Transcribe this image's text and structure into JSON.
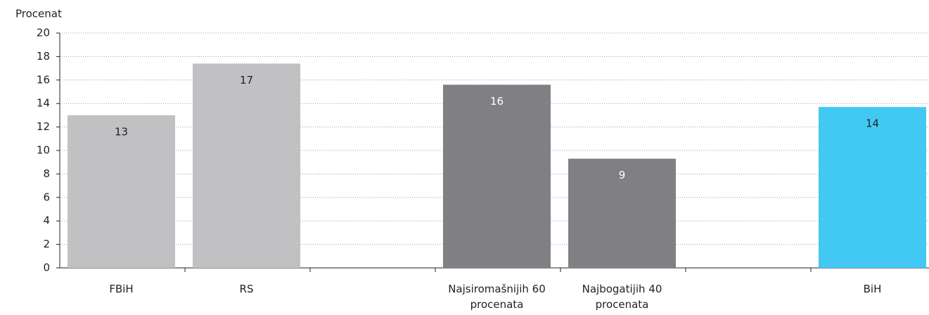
{
  "chart_data": {
    "type": "bar",
    "y_label": "Procenat",
    "categories": [
      "FBiH",
      "RS",
      null,
      "Najsiromašnijih 60 procenata",
      "Najbogatijih 40 procenata",
      null,
      "BiH"
    ],
    "values": [
      13.0,
      17.4,
      null,
      15.6,
      9.3,
      null,
      13.7
    ],
    "value_labels": [
      "13",
      "17",
      null,
      "16",
      "9",
      null,
      "14"
    ],
    "colors": [
      "#c1c1c3",
      "#c1c1c3",
      null,
      "#808084",
      "#808084",
      null,
      "#41c9f3"
    ],
    "value_label_colors": [
      "#231f20",
      "#231f20",
      null,
      "#ffffff",
      "#ffffff",
      null,
      "#231f20"
    ],
    "ylim": [
      0,
      20
    ],
    "yticks": [
      0,
      2,
      4,
      6,
      8,
      10,
      12,
      14,
      16,
      18,
      20
    ],
    "grid": true
  }
}
